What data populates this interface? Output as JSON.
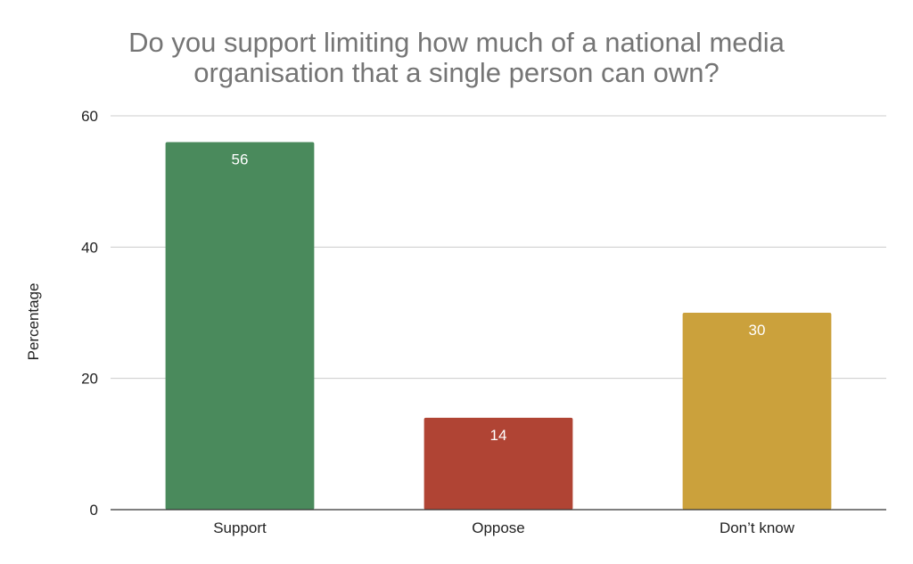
{
  "chart_data": {
    "type": "bar",
    "title_lines": [
      "Do you support limiting how much of a national media",
      "organisation that a single person can own?"
    ],
    "xlabel": "",
    "ylabel": "Percentage",
    "categories": [
      "Support",
      "Oppose",
      "Don’t know"
    ],
    "values": [
      56,
      14,
      30
    ],
    "data_labels": [
      "56",
      "14",
      "30"
    ],
    "colors": [
      "#4a8a5c",
      "#b04434",
      "#cba13c"
    ],
    "ylim": [
      0,
      60
    ],
    "yticks": [
      0,
      20,
      40,
      60
    ],
    "grid": true,
    "legend": "none"
  }
}
